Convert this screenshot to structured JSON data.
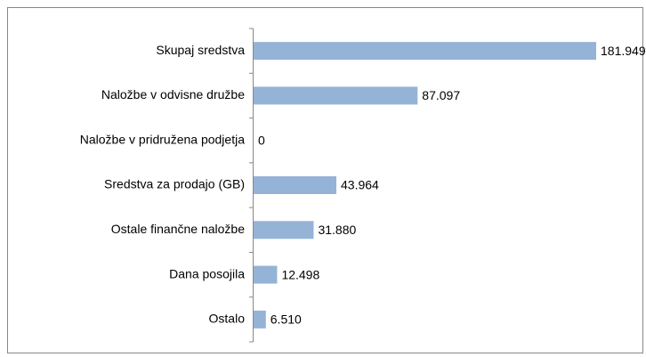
{
  "chart_data": {
    "type": "hbar",
    "categories": [
      "Skupaj sredstva",
      "Naložbe v odvisne družbe",
      "Naložbe v pridružena podjetja",
      "Sredstva za prodajo (GB)",
      "Ostale finančne naložbe",
      "Dana posojila",
      "Ostalo"
    ],
    "values": [
      181949,
      87097,
      0,
      43964,
      31880,
      12498,
      6510
    ],
    "value_labels": [
      "181.949",
      "87.097",
      "0",
      "43.964",
      "31.880",
      "12.498",
      "6.510"
    ],
    "color": "#95b3d7"
  }
}
